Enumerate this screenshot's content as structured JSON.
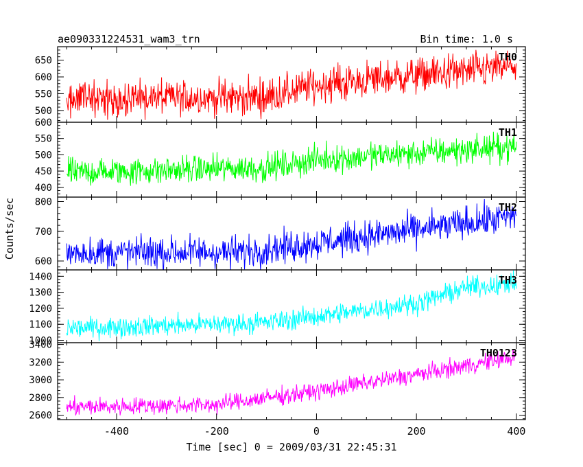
{
  "header": {
    "left_title": "ae090331224531_wam3_trn",
    "right_title": "Bin time: 1.0 s"
  },
  "chart_data": {
    "type": "line",
    "xlabel": "Time [sec] 0 = 2009/03/31 22:45:31",
    "ylabel": "Counts/sec",
    "bin_time_s": 1.0,
    "xlim": [
      -518,
      418
    ],
    "xticks": [
      -400,
      -200,
      0,
      200,
      400
    ],
    "x_start": -500,
    "x_end": 400,
    "panels": [
      {
        "name": "TH0",
        "color": "#ff0000",
        "ylim": [
          465,
          690
        ],
        "yticks": [
          500,
          550,
          600,
          650
        ],
        "trend_points": [
          [
            -500,
            535
          ],
          [
            -100,
            540
          ],
          [
            0,
            575
          ],
          [
            200,
            605
          ],
          [
            400,
            630
          ]
        ],
        "noise_amplitude": 38
      },
      {
        "name": "TH1",
        "color": "#00ff00",
        "ylim": [
          370,
          600
        ],
        "yticks": [
          400,
          450,
          500,
          550,
          600
        ],
        "trend_points": [
          [
            -500,
            445
          ],
          [
            -100,
            460
          ],
          [
            0,
            485
          ],
          [
            200,
            505
          ],
          [
            400,
            525
          ]
        ],
        "noise_amplitude": 30
      },
      {
        "name": "TH2",
        "color": "#0000ff",
        "ylim": [
          570,
          815
        ],
        "yticks": [
          600,
          700,
          800
        ],
        "trend_points": [
          [
            -500,
            628
          ],
          [
            -150,
            630
          ],
          [
            0,
            660
          ],
          [
            200,
            705
          ],
          [
            400,
            750
          ]
        ],
        "noise_amplitude": 38
      },
      {
        "name": "TH3",
        "color": "#00ffff",
        "ylim": [
          985,
          1440
        ],
        "yticks": [
          1000,
          1100,
          1200,
          1300,
          1400
        ],
        "trend_points": [
          [
            -500,
            1075
          ],
          [
            -100,
            1110
          ],
          [
            0,
            1150
          ],
          [
            200,
            1230
          ],
          [
            300,
            1330
          ],
          [
            400,
            1355
          ]
        ],
        "noise_amplitude": 45
      },
      {
        "name": "TH0123",
        "color": "#ff00ff",
        "ylim": [
          2550,
          3420
        ],
        "yticks": [
          2600,
          2800,
          3000,
          3200,
          3400
        ],
        "trend_points": [
          [
            -500,
            2690
          ],
          [
            -200,
            2720
          ],
          [
            0,
            2870
          ],
          [
            200,
            3060
          ],
          [
            400,
            3260
          ]
        ],
        "noise_amplitude": 70
      }
    ]
  }
}
